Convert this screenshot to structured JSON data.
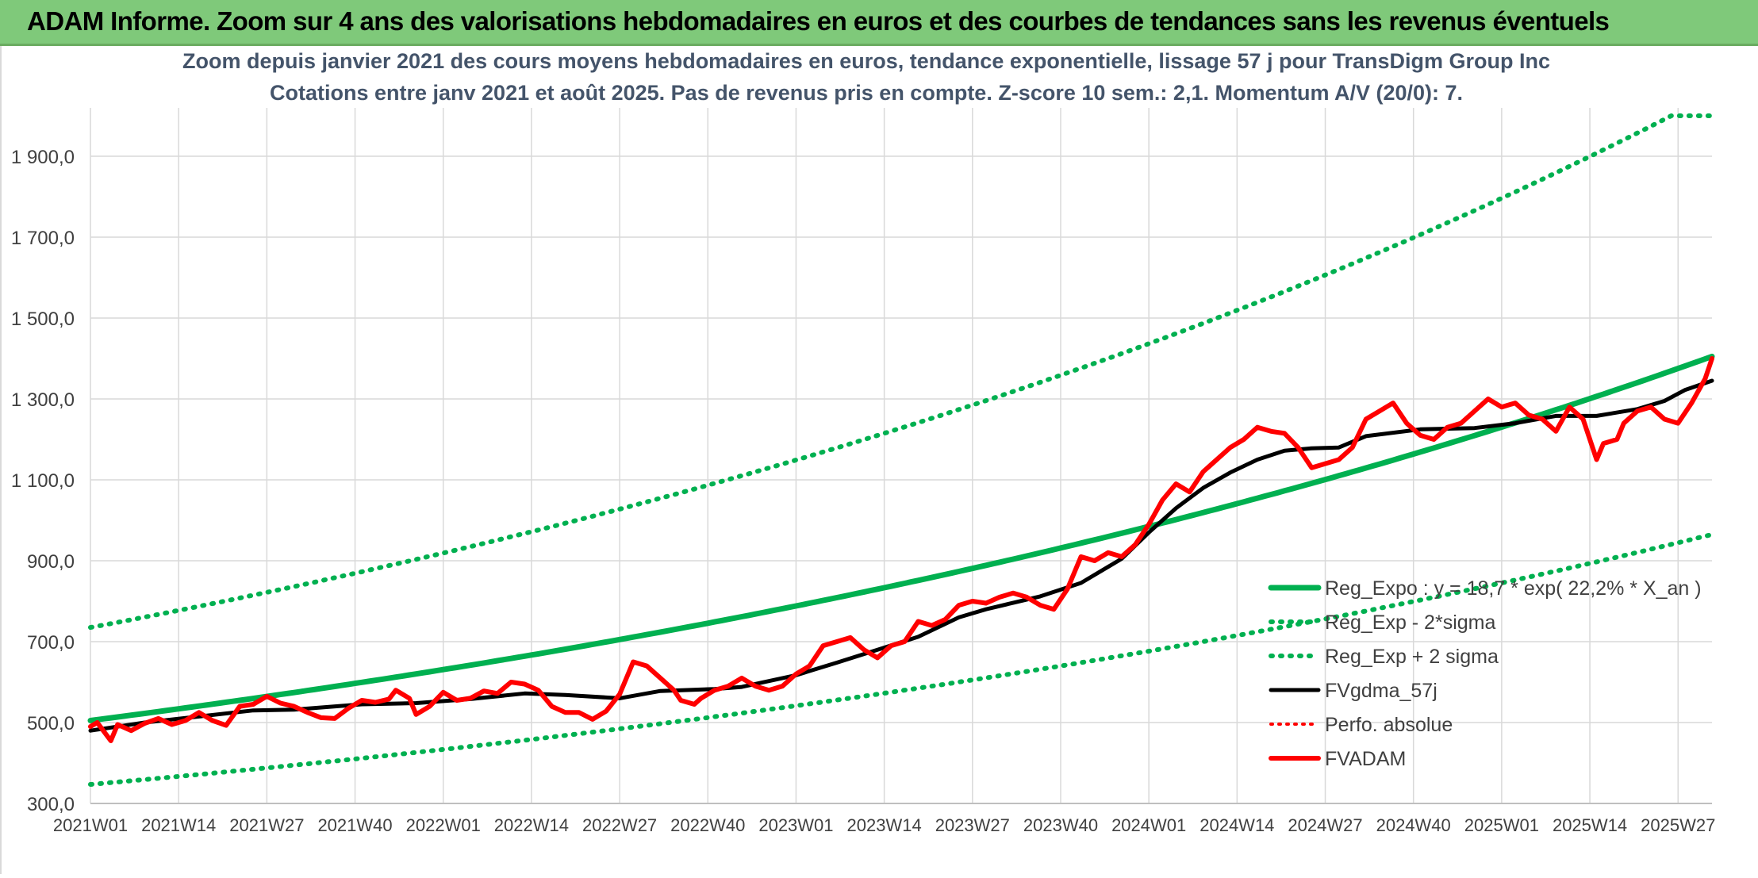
{
  "header": {
    "title": "ADAM Informe. Zoom sur 4 ans des valorisations hebdomadaires en euros et des courbes de tendances sans les revenus éventuels"
  },
  "chart_data": {
    "type": "line",
    "title": "Zoom depuis janvier 2021 des cours moyens hebdomadaires en euros, tendance exponentielle, lissage 57 j pour TransDigm Group Inc",
    "subtitle": "Cotations entre janv 2021 et août 2025. Pas de revenus pris en compte. Z-score 10 sem.: 2,1. Momentum A/V (20/0): 7.",
    "xlabel": "",
    "ylabel": "",
    "ylim": [
      300,
      2000
    ],
    "y_ticks": [
      "300,0",
      "500,0",
      "700,0",
      "900,0",
      "1 100,0",
      "1 300,0",
      "1 500,0",
      "1 700,0",
      "1 900,0"
    ],
    "y_tick_values": [
      300,
      500,
      700,
      900,
      1100,
      1300,
      1500,
      1700,
      1900
    ],
    "x_ticks": [
      "2021W01",
      "2021W14",
      "2021W27",
      "2021W40",
      "2022W01",
      "2022W14",
      "2022W27",
      "2022W40",
      "2023W01",
      "2023W14",
      "2023W27",
      "2023W40",
      "2024W01",
      "2024W14",
      "2024W27",
      "2024W40",
      "2025W01",
      "2025W14",
      "2025W27"
    ],
    "x_tick_week_index": [
      0,
      13,
      26,
      39,
      52,
      65,
      78,
      91,
      104,
      117,
      130,
      143,
      156,
      169,
      182,
      195,
      208,
      221,
      234
    ],
    "grid": true,
    "legend_position": "lower-right inside",
    "colors": {
      "green_solid": "#00b050",
      "green_dotted": "#00b050",
      "black": "#000000",
      "red": "#ff0000",
      "grid": "#d9d9d9",
      "axis_text": "#404040",
      "title_text": "#44546a"
    },
    "series": [
      {
        "name": "Reg_Expo : y = 18,7 * exp( 22,2% *  X_an )",
        "style": "solid-green",
        "formula_points": {
          "x_week": [
            0,
            239
          ],
          "y": [
            505,
            1405
          ]
        }
      },
      {
        "name": "Reg_Exp - 2*sigma",
        "style": "dotted-green",
        "formula_points": {
          "x_week": [
            0,
            239
          ],
          "y": [
            347,
            965
          ]
        }
      },
      {
        "name": "Reg_Exp + 2 sigma",
        "style": "dotted-green",
        "formula_points": {
          "x_week": [
            0,
            233,
            239
          ],
          "y": [
            735,
            2000,
            2000
          ]
        }
      },
      {
        "name": "FVgdma_57j",
        "style": "solid-black",
        "x_week": [
          0,
          8,
          16,
          24,
          30,
          40,
          48,
          56,
          64,
          70,
          78,
          84,
          92,
          96,
          104,
          110,
          116,
          122,
          128,
          132,
          140,
          146,
          152,
          156,
          160,
          164,
          168,
          172,
          176,
          180,
          184,
          188,
          196,
          204,
          210,
          216,
          222,
          228,
          232,
          235,
          239
        ],
        "y": [
          480,
          500,
          515,
          530,
          532,
          545,
          548,
          558,
          572,
          568,
          560,
          578,
          583,
          588,
          617,
          648,
          680,
          712,
          760,
          780,
          812,
          845,
          905,
          970,
          1030,
          1080,
          1118,
          1150,
          1172,
          1178,
          1180,
          1208,
          1225,
          1228,
          1240,
          1258,
          1258,
          1275,
          1295,
          1322,
          1345
        ]
      },
      {
        "name": "Perfo. absolue",
        "style": "dotted-red",
        "x_week": [],
        "y": []
      },
      {
        "name": "FVADAM",
        "style": "solid-red",
        "x_week": [
          0,
          1,
          3,
          4,
          6,
          8,
          10,
          12,
          14,
          16,
          18,
          20,
          22,
          24,
          26,
          28,
          30,
          32,
          34,
          36,
          38,
          40,
          42,
          44,
          45,
          47,
          48,
          50,
          52,
          54,
          56,
          58,
          60,
          62,
          64,
          66,
          68,
          70,
          72,
          74,
          76,
          78,
          80,
          82,
          84,
          86,
          87,
          89,
          90,
          92,
          94,
          96,
          98,
          100,
          102,
          104,
          106,
          108,
          110,
          112,
          114,
          116,
          118,
          120,
          122,
          124,
          126,
          128,
          130,
          132,
          134,
          136,
          138,
          140,
          142,
          144,
          146,
          148,
          150,
          152,
          154,
          156,
          158,
          160,
          162,
          164,
          166,
          168,
          170,
          172,
          174,
          176,
          178,
          180,
          182,
          184,
          186,
          188,
          190,
          192,
          194,
          196,
          198,
          200,
          202,
          204,
          206,
          208,
          210,
          212,
          214,
          216,
          218,
          220,
          222,
          223,
          225,
          226,
          228,
          230,
          232,
          234,
          236,
          238,
          239
        ],
        "y": [
          490,
          500,
          455,
          495,
          480,
          498,
          510,
          495,
          505,
          525,
          505,
          493,
          540,
          545,
          565,
          548,
          540,
          525,
          512,
          510,
          535,
          555,
          550,
          558,
          580,
          560,
          520,
          540,
          575,
          555,
          560,
          578,
          572,
          600,
          595,
          580,
          540,
          525,
          525,
          508,
          528,
          570,
          650,
          640,
          610,
          580,
          555,
          545,
          560,
          580,
          590,
          610,
          590,
          580,
          590,
          620,
          640,
          690,
          700,
          710,
          680,
          660,
          690,
          700,
          750,
          740,
          755,
          790,
          800,
          795,
          810,
          820,
          810,
          790,
          780,
          830,
          910,
          900,
          920,
          910,
          940,
          990,
          1050,
          1090,
          1070,
          1120,
          1150,
          1180,
          1200,
          1230,
          1220,
          1215,
          1180,
          1130,
          1140,
          1150,
          1180,
          1250,
          1270,
          1290,
          1240,
          1210,
          1200,
          1230,
          1240,
          1270,
          1300,
          1280,
          1290,
          1260,
          1250,
          1220,
          1280,
          1250,
          1150,
          1190,
          1200,
          1240,
          1270,
          1280,
          1250,
          1240,
          1290,
          1350,
          1400
        ]
      }
    ]
  }
}
